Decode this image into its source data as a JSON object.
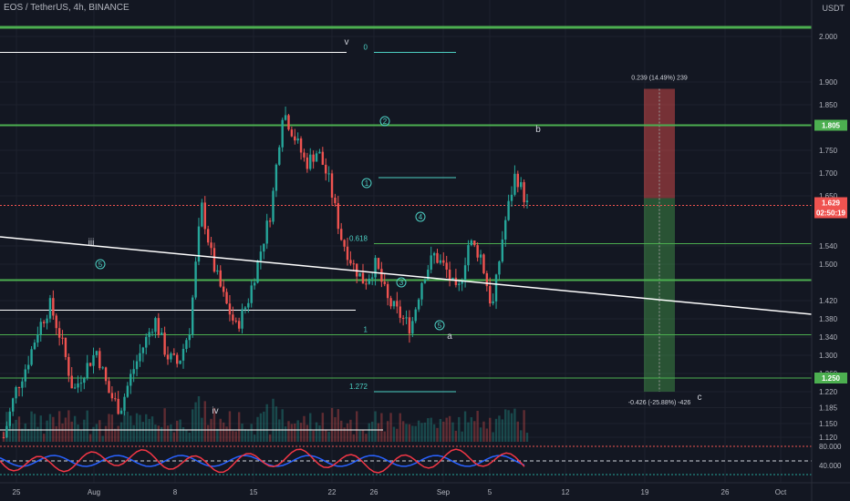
{
  "header": {
    "symbol_line": "EOS / TetherUS, 4h, BINANCE",
    "price_unit": "USDT"
  },
  "colors": {
    "background": "#131722",
    "up": "#26a69a",
    "down": "#ef5350",
    "level": "#4caf50",
    "trendline": "#ffffff",
    "fib": "#4dd0c4"
  },
  "y_axis_ticks": [
    "2.000",
    "1.900",
    "1.850",
    "1.750",
    "1.700",
    "1.650",
    "1.540",
    "1.500",
    "1.420",
    "1.380",
    "1.340",
    "1.300",
    "1.260",
    "1.220",
    "1.185",
    "1.150",
    "1.120"
  ],
  "price_tags": [
    {
      "label": "1.805",
      "kind": "level"
    },
    {
      "label": "1.629",
      "kind": "current"
    },
    {
      "label": "02:50:19",
      "kind": "countdown"
    },
    {
      "label": "1.250",
      "kind": "level"
    }
  ],
  "x_axis_ticks": [
    "25",
    "Aug",
    "8",
    "15",
    "22",
    "26",
    "Sep",
    "5",
    "12",
    "19",
    "26",
    "Oct"
  ],
  "wave_labels": {
    "iii": "iii",
    "iv": "iv",
    "v": "v",
    "a": "a",
    "b": "b",
    "c": "c"
  },
  "circle_labels": [
    "2",
    "1",
    "4",
    "3",
    "5",
    "5"
  ],
  "fib_labels": {
    "f0": "0",
    "f0618": "0.618",
    "f1": "1",
    "f1272": "1.272"
  },
  "position_tool": {
    "upper": "0.239 (14.49%) 239",
    "lower": "-0.426 (-25.88%) -426"
  },
  "indicator_ticks": [
    "80.000",
    "40.000"
  ],
  "chart_data": {
    "type": "candlestick",
    "title": "EOS / TetherUS, 4h, BINANCE",
    "ylim": [
      1.11,
      2.06
    ],
    "key_levels": [
      2.02,
      1.805,
      1.465,
      1.25
    ],
    "current_price": 1.629,
    "trendline": {
      "from": 1.56,
      "to": 1.39
    },
    "position": {
      "entry": 1.645,
      "stop": 1.885,
      "target": 1.22
    },
    "wave_path": [
      1.12,
      1.22,
      1.28,
      1.36,
      1.41,
      1.33,
      1.22,
      1.27,
      1.31,
      1.22,
      1.18,
      1.26,
      1.32,
      1.38,
      1.3,
      1.28,
      1.36,
      1.63,
      1.5,
      1.42,
      1.36,
      1.42,
      1.52,
      1.62,
      1.84,
      1.78,
      1.72,
      1.75,
      1.68,
      1.56,
      1.5,
      1.46,
      1.5,
      1.42,
      1.39,
      1.36,
      1.47,
      1.52,
      1.49,
      1.43,
      1.55,
      1.52,
      1.4,
      1.58,
      1.7,
      1.63
    ]
  }
}
